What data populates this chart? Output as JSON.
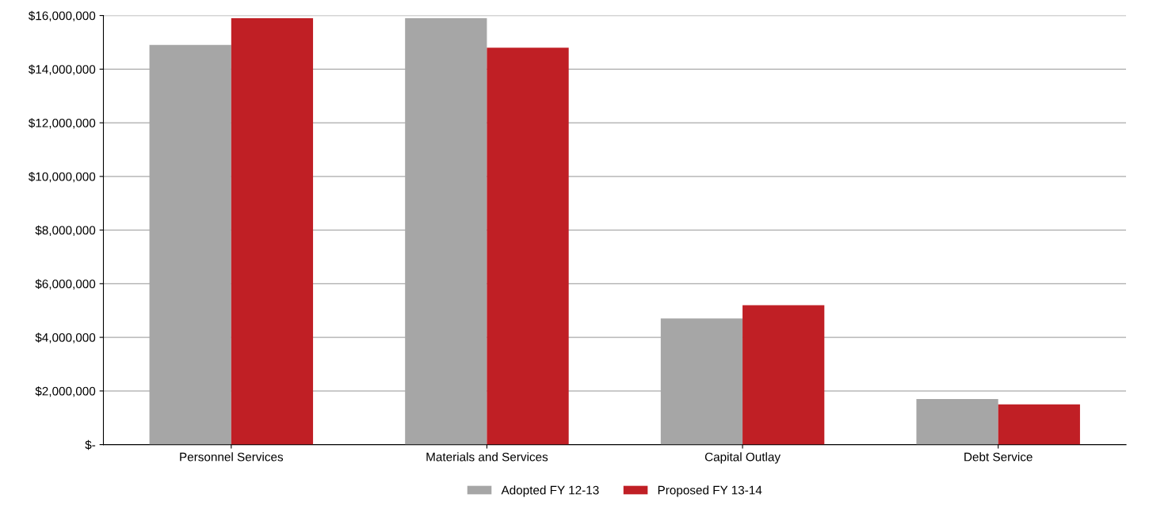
{
  "chart_data": {
    "type": "bar",
    "categories": [
      "Personnel Services",
      "Materials and Services",
      "Capital Outlay",
      "Debt Service"
    ],
    "series": [
      {
        "name": "Adopted FY 12-13",
        "color": "#a6a6a6",
        "values": [
          14900000,
          15900000,
          4700000,
          1700000
        ]
      },
      {
        "name": "Proposed FY 13-14",
        "color": "#c01f25",
        "values": [
          15900000,
          14800000,
          5200000,
          1500000
        ]
      }
    ],
    "ylim": [
      0,
      16000000
    ],
    "yticks": [
      {
        "value": 0,
        "label": "$-"
      },
      {
        "value": 2000000,
        "label": "$2,000,000"
      },
      {
        "value": 4000000,
        "label": "$4,000,000"
      },
      {
        "value": 6000000,
        "label": "$6,000,000"
      },
      {
        "value": 8000000,
        "label": "$8,000,000"
      },
      {
        "value": 10000000,
        "label": "$10,000,000"
      },
      {
        "value": 12000000,
        "label": "$12,000,000"
      },
      {
        "value": 14000000,
        "label": "$14,000,000"
      },
      {
        "value": 16000000,
        "label": "$16,000,000"
      }
    ],
    "grid": "y",
    "legend": "bottom"
  }
}
